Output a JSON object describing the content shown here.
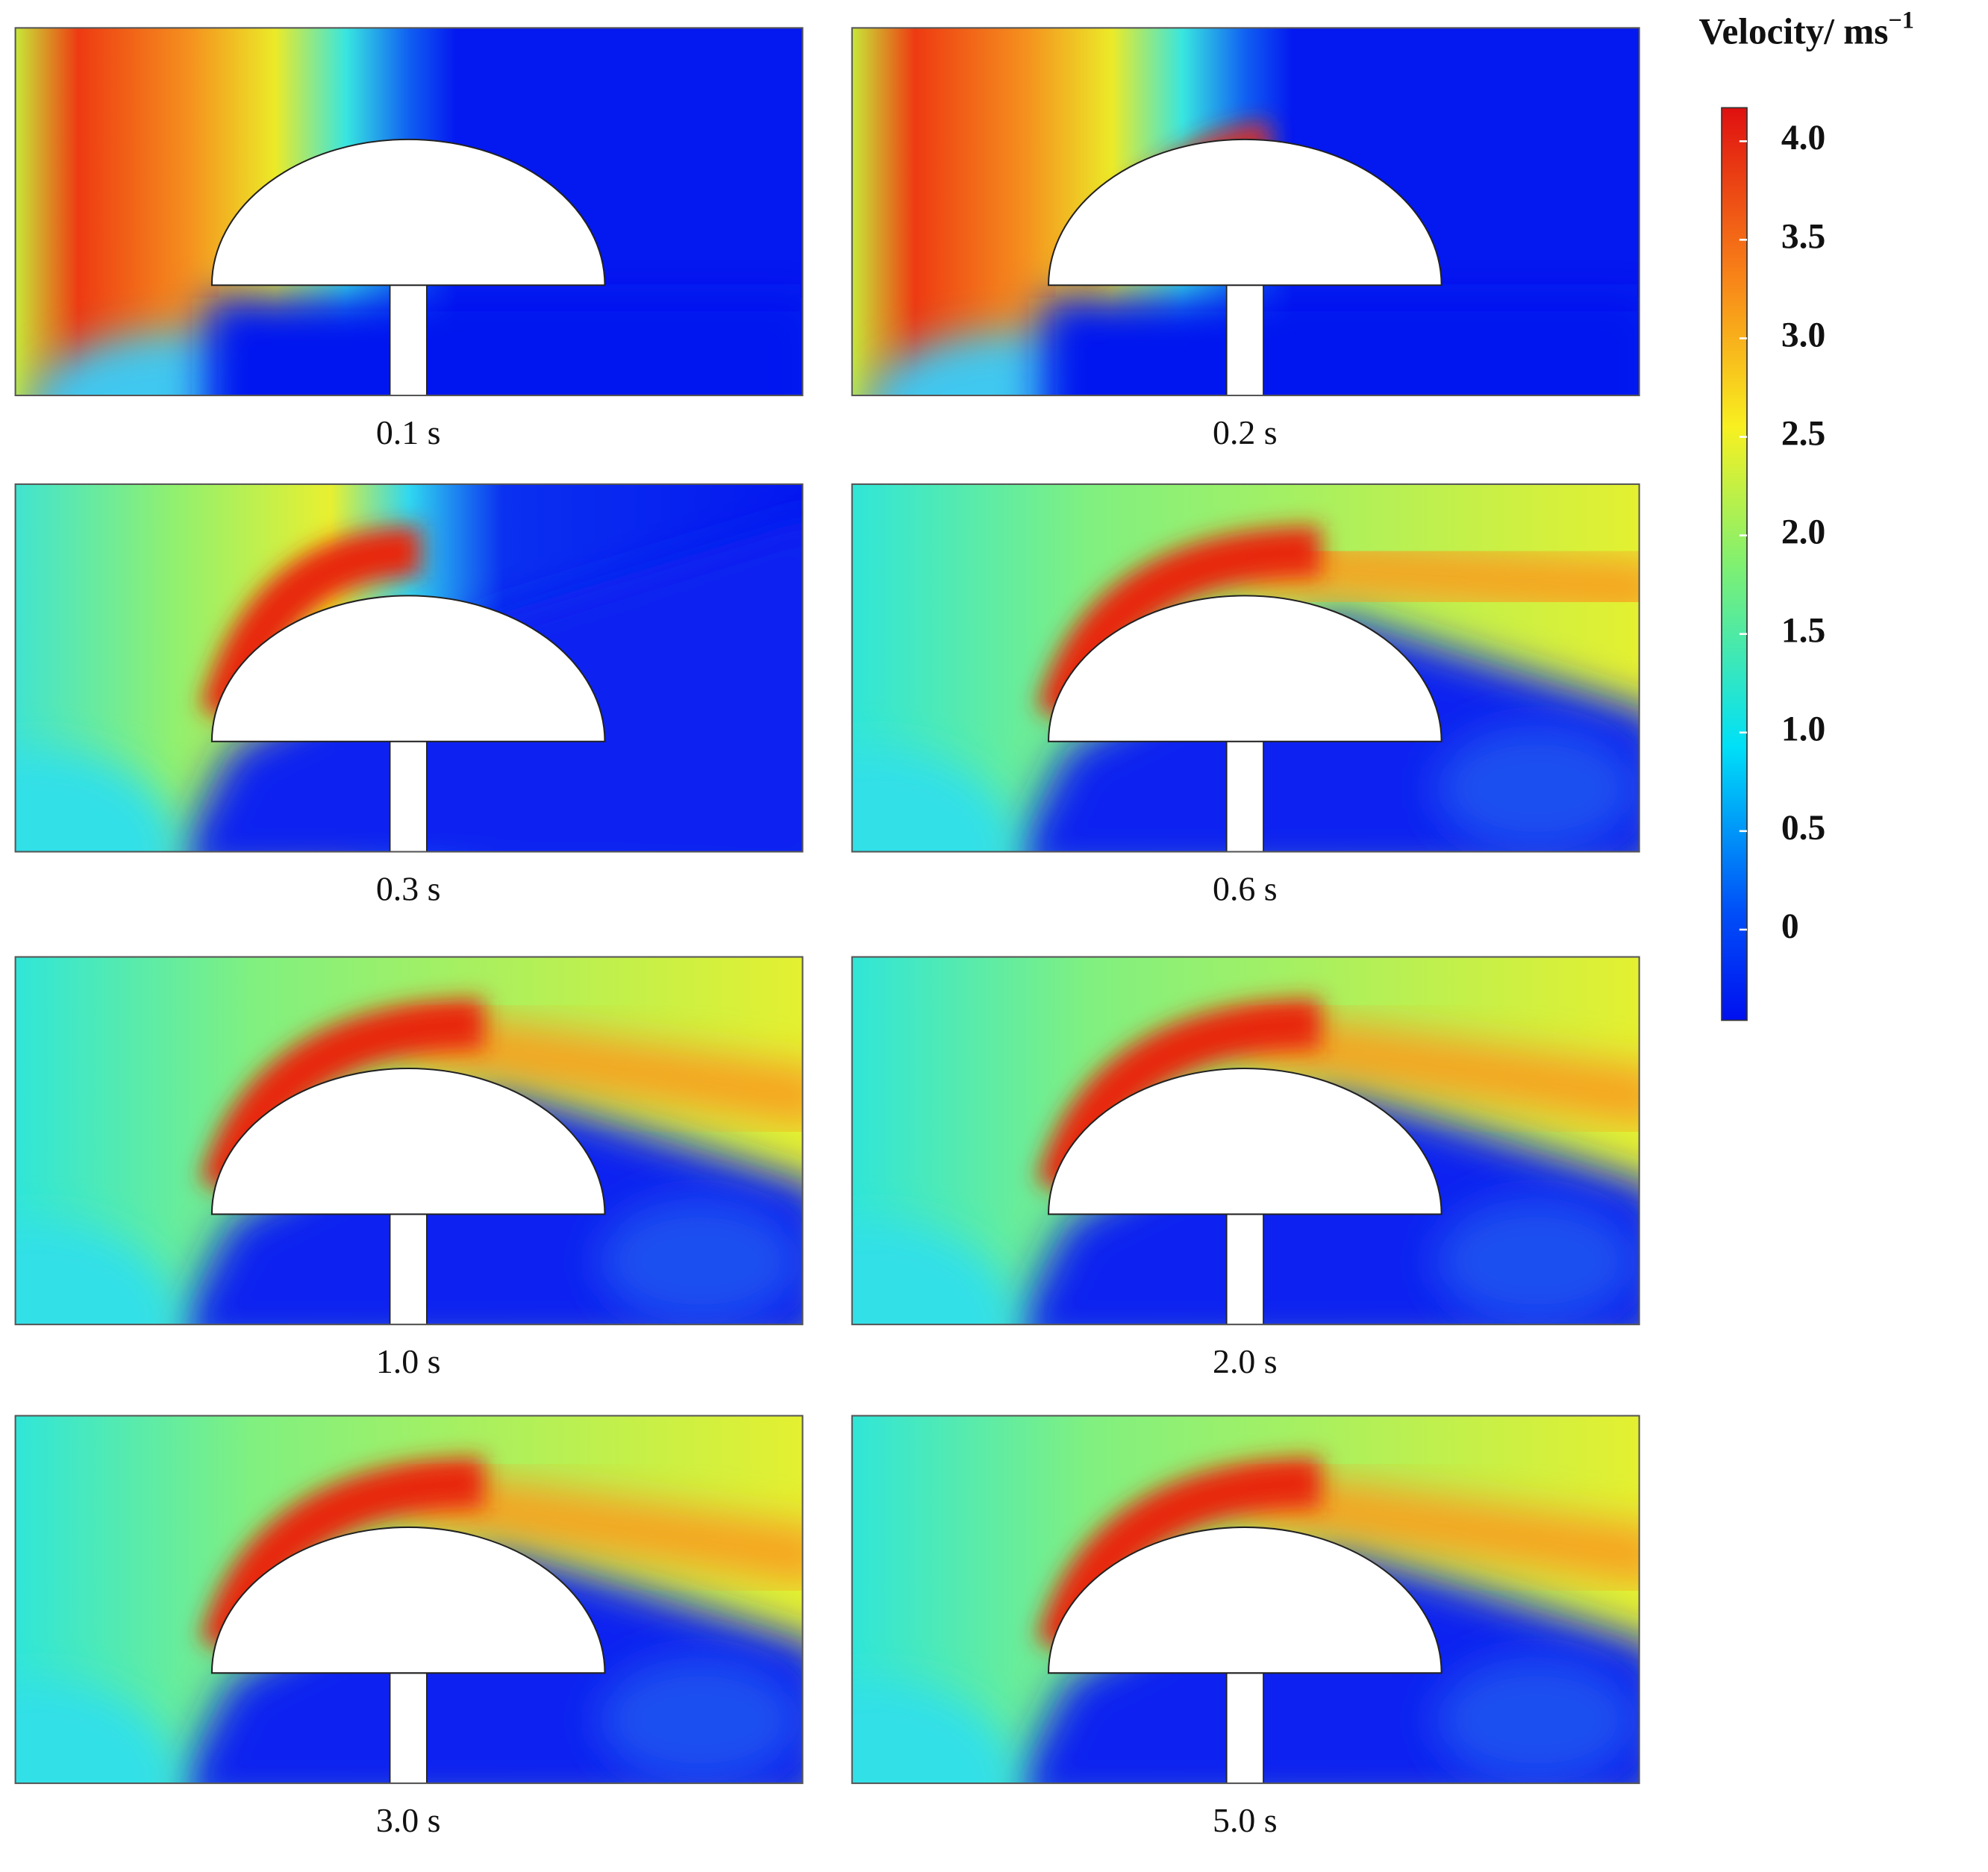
{
  "panels": [
    {
      "label": "0.1 s"
    },
    {
      "label": "0.2 s"
    },
    {
      "label": "0.3 s"
    },
    {
      "label": "0.6 s"
    },
    {
      "label": "1.0 s"
    },
    {
      "label": "2.0 s"
    },
    {
      "label": "3.0 s"
    },
    {
      "label": "5.0 s"
    }
  ],
  "colorbar": {
    "title": "Velocity/ ms",
    "title_superscript": "−1",
    "range": [
      -0.46,
      4.17
    ],
    "ticks": [
      0,
      0.5,
      {
        "value": 1,
        "label": "1.0"
      },
      1.5,
      {
        "value": 2,
        "label": "2.0"
      },
      2.5,
      {
        "value": 3,
        "label": "3.0"
      },
      3.5,
      {
        "value": 4,
        "label": "4.0"
      }
    ]
  }
}
